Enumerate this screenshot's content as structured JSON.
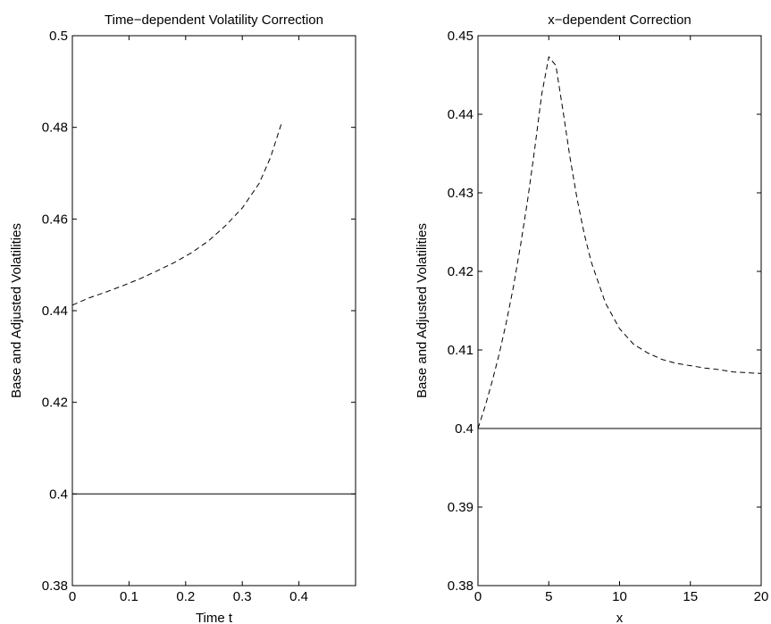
{
  "chart_data": [
    {
      "type": "line",
      "title": "Time−dependent Volatility Correction",
      "xlabel": "Time t",
      "ylabel": "Base and Adjusted Volatilities",
      "xlim": [
        0,
        0.5
      ],
      "ylim": [
        0.38,
        0.5
      ],
      "xticks": [
        0,
        0.1,
        0.2,
        0.3,
        0.4
      ],
      "xtick_labels": [
        "0",
        "0.1",
        "0.2",
        "0.3",
        "0.4"
      ],
      "yticks": [
        0.38,
        0.4,
        0.42,
        0.44,
        0.46,
        0.48,
        0.5
      ],
      "ytick_labels": [
        "0.38",
        "0.4",
        "0.42",
        "0.44",
        "0.46",
        "0.48",
        "0.5"
      ],
      "grid": false,
      "series": [
        {
          "style": "solid",
          "color": "#000000",
          "x": [
            0,
            0.5
          ],
          "y": [
            0.4,
            0.4
          ]
        },
        {
          "style": "dashed",
          "color": "#000000",
          "x": [
            0,
            0.03,
            0.06,
            0.09,
            0.12,
            0.15,
            0.18,
            0.21,
            0.24,
            0.27,
            0.3,
            0.33,
            0.35,
            0.37
          ],
          "y": [
            0.4412,
            0.4428,
            0.4441,
            0.4455,
            0.447,
            0.4487,
            0.4505,
            0.4526,
            0.4552,
            0.4585,
            0.4624,
            0.4678,
            0.4735,
            0.4812
          ]
        }
      ]
    },
    {
      "type": "line",
      "title": "x−dependent Correction",
      "xlabel": "x",
      "ylabel": "Base and Adjusted Volatilities",
      "xlim": [
        0,
        20
      ],
      "ylim": [
        0.38,
        0.45
      ],
      "xticks": [
        0,
        5,
        10,
        15,
        20
      ],
      "xtick_labels": [
        "0",
        "5",
        "10",
        "15",
        "20"
      ],
      "yticks": [
        0.38,
        0.39,
        0.4,
        0.41,
        0.42,
        0.43,
        0.44,
        0.45
      ],
      "ytick_labels": [
        "0.38",
        "0.39",
        "0.4",
        "0.41",
        "0.42",
        "0.43",
        "0.44",
        "0.45"
      ],
      "grid": false,
      "series": [
        {
          "style": "solid",
          "color": "#000000",
          "x": [
            0,
            20
          ],
          "y": [
            0.4,
            0.4
          ]
        },
        {
          "style": "dashed",
          "color": "#000000",
          "x": [
            0,
            0.5,
            1,
            1.5,
            2,
            2.5,
            3,
            3.5,
            4,
            4.5,
            5,
            5.5,
            6,
            6.5,
            7,
            7.5,
            8,
            9,
            10,
            11,
            12,
            13,
            14,
            15,
            16,
            17,
            18,
            19,
            20
          ],
          "y": [
            0.4,
            0.4028,
            0.406,
            0.4095,
            0.4135,
            0.418,
            0.4232,
            0.429,
            0.4355,
            0.4425,
            0.4473,
            0.4462,
            0.4405,
            0.4345,
            0.4292,
            0.4248,
            0.4212,
            0.416,
            0.4127,
            0.4107,
            0.4096,
            0.4088,
            0.4083,
            0.408,
            0.4077,
            0.4075,
            0.4072,
            0.4071,
            0.407
          ]
        }
      ]
    }
  ]
}
